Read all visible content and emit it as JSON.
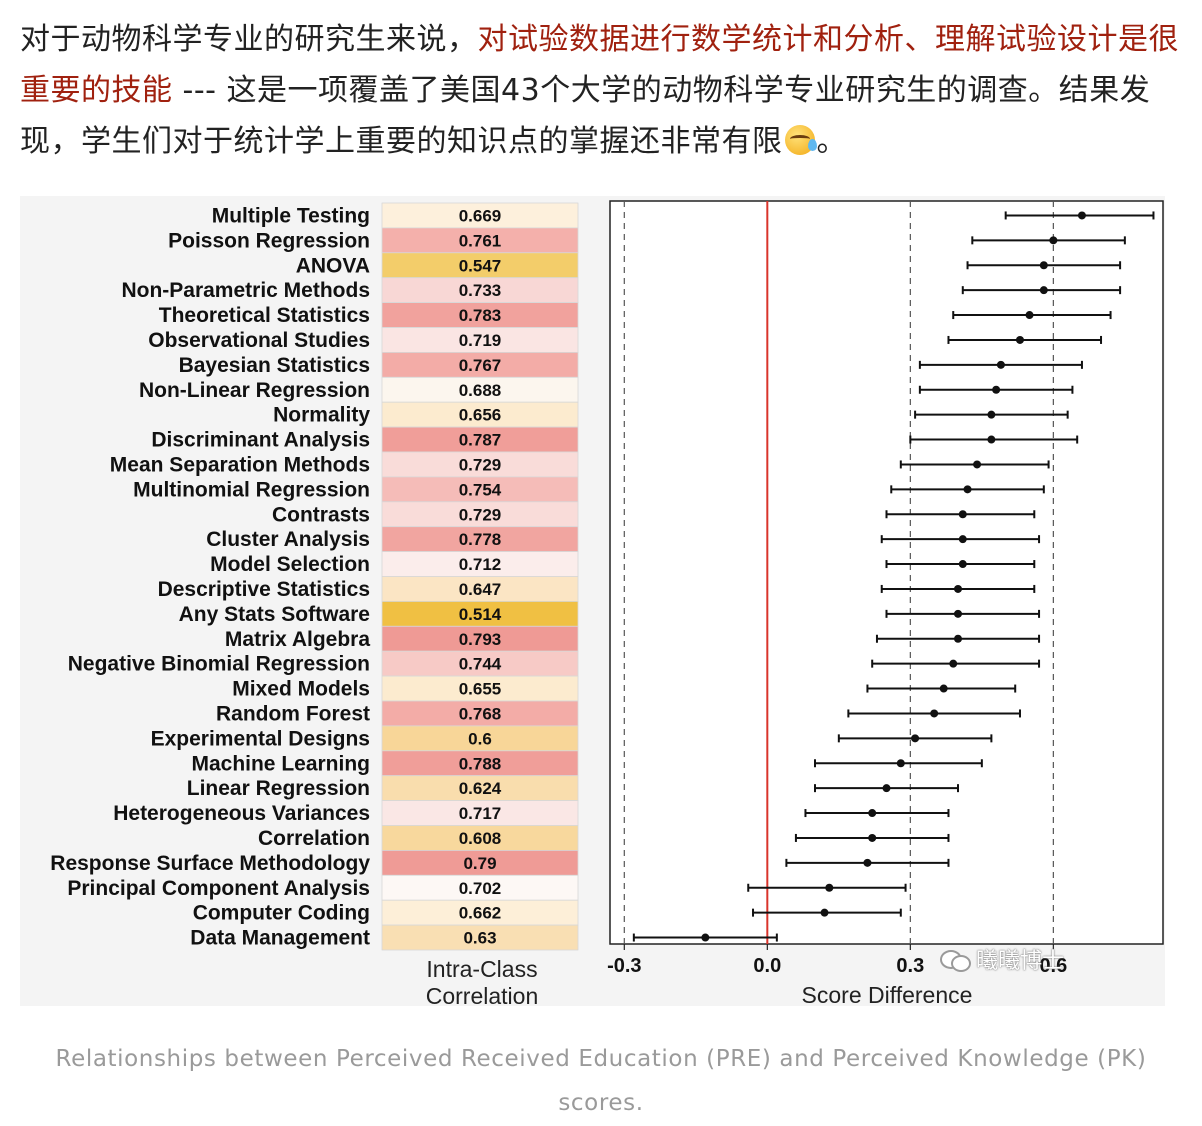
{
  "intro": {
    "part1": "对于动物科学专业的研究生来说，",
    "highlight": "对试验数据进行数学统计和分析、理解试验设计是很重要的技能",
    "part2": " --- 这是一项覆盖了美国43个大学的动物科学专业研究生的调查。结果发现，学生们对于统计学上重要的知识点的掌握还非常有限",
    "part3": "。"
  },
  "colors": {
    "highlight": "#a0210f",
    "zero_line": "#d9342b",
    "caption": "#9a9a9a"
  },
  "icons": {
    "emoji": "crying-laughing-emoji-icon",
    "watermark": "wechat-icon"
  },
  "watermark": "曦曦博士",
  "caption": "Relationships between Perceived Received Education (PRE) and Perceived Knowledge (PK) scores.",
  "chart_data": {
    "type": "table",
    "left_panel": {
      "xlabel_line1": "Intra-Class",
      "xlabel_line2": "Correlation",
      "rows": [
        {
          "label": "Multiple Testing",
          "icc": "0.669",
          "color": "#fdf0dc"
        },
        {
          "label": "Poisson Regression",
          "icc": "0.761",
          "color": "#f4b0ab"
        },
        {
          "label": "ANOVA",
          "icc": "0.547",
          "color": "#f3cd6a"
        },
        {
          "label": "Non-Parametric Methods",
          "icc": "0.733",
          "color": "#f8d7d5"
        },
        {
          "label": "Theoretical Statistics",
          "icc": "0.783",
          "color": "#f1a29d"
        },
        {
          "label": "Observational Studies",
          "icc": "0.719",
          "color": "#fae5e3"
        },
        {
          "label": "Bayesian Statistics",
          "icc": "0.767",
          "color": "#f3aca7"
        },
        {
          "label": "Non-Linear Regression",
          "icc": "0.688",
          "color": "#fcf6ee"
        },
        {
          "label": "Normality",
          "icc": "0.656",
          "color": "#fcebcf"
        },
        {
          "label": "Discriminant Analysis",
          "icc": "0.787",
          "color": "#f09e99"
        },
        {
          "label": "Mean Separation Methods",
          "icc": "0.729",
          "color": "#f9dcd9"
        },
        {
          "label": "Multinomial Regression",
          "icc": "0.754",
          "color": "#f5bcb8"
        },
        {
          "label": "Contrasts",
          "icc": "0.729",
          "color": "#f9dcd9"
        },
        {
          "label": "Cluster Analysis",
          "icc": "0.778",
          "color": "#f1a5a0"
        },
        {
          "label": "Model Selection",
          "icc": "0.712",
          "color": "#fbedeb"
        },
        {
          "label": "Descriptive Statistics",
          "icc": "0.647",
          "color": "#fbe5c4"
        },
        {
          "label": "Any Stats Software",
          "icc": "0.514",
          "color": "#f0c043"
        },
        {
          "label": "Matrix Algebra",
          "icc": "0.793",
          "color": "#ef9a95"
        },
        {
          "label": "Negative Binomial Regression",
          "icc": "0.744",
          "color": "#f7cac6"
        },
        {
          "label": "Mixed Models",
          "icc": "0.655",
          "color": "#fcebcf"
        },
        {
          "label": "Random Forest",
          "icc": "0.768",
          "color": "#f3aca7"
        },
        {
          "label": "Experimental Designs",
          "icc": "0.6",
          "color": "#f8d698"
        },
        {
          "label": "Machine Learning",
          "icc": "0.788",
          "color": "#f09e99"
        },
        {
          "label": "Linear Regression",
          "icc": "0.624",
          "color": "#f9ddad"
        },
        {
          "label": "Heterogeneous Variances",
          "icc": "0.717",
          "color": "#fae7e5"
        },
        {
          "label": "Correlation",
          "icc": "0.608",
          "color": "#f8d89d"
        },
        {
          "label": "Response Surface Methodology",
          "icc": "0.79",
          "color": "#ef9b96"
        },
        {
          "label": "Principal Component Analysis",
          "icc": "0.702",
          "color": "#fdf8f5"
        },
        {
          "label": "Computer Coding",
          "icc": "0.662",
          "color": "#fdefd8"
        },
        {
          "label": "Data Management",
          "icc": "0.63",
          "color": "#f9dfb3"
        }
      ]
    },
    "right_panel": {
      "type": "scatter",
      "xlabel": "Score Difference",
      "xlim": [
        -0.33,
        0.83
      ],
      "xticks": [
        "-0.3",
        "0.0",
        "0.3",
        "0.6"
      ],
      "reference_lines": {
        "solid": 0.0,
        "dashed": [
          -0.3,
          0.3,
          0.6
        ]
      },
      "points": [
        {
          "est": 0.66,
          "low": 0.5,
          "high": 0.81
        },
        {
          "est": 0.6,
          "low": 0.43,
          "high": 0.75
        },
        {
          "est": 0.58,
          "low": 0.42,
          "high": 0.74
        },
        {
          "est": 0.58,
          "low": 0.41,
          "high": 0.74
        },
        {
          "est": 0.55,
          "low": 0.39,
          "high": 0.72
        },
        {
          "est": 0.53,
          "low": 0.38,
          "high": 0.7
        },
        {
          "est": 0.49,
          "low": 0.32,
          "high": 0.66
        },
        {
          "est": 0.48,
          "low": 0.32,
          "high": 0.64
        },
        {
          "est": 0.47,
          "low": 0.31,
          "high": 0.63
        },
        {
          "est": 0.47,
          "low": 0.3,
          "high": 0.65
        },
        {
          "est": 0.44,
          "low": 0.28,
          "high": 0.59
        },
        {
          "est": 0.42,
          "low": 0.26,
          "high": 0.58
        },
        {
          "est": 0.41,
          "low": 0.25,
          "high": 0.56
        },
        {
          "est": 0.41,
          "low": 0.24,
          "high": 0.57
        },
        {
          "est": 0.41,
          "low": 0.25,
          "high": 0.56
        },
        {
          "est": 0.4,
          "low": 0.24,
          "high": 0.56
        },
        {
          "est": 0.4,
          "low": 0.25,
          "high": 0.57
        },
        {
          "est": 0.4,
          "low": 0.23,
          "high": 0.57
        },
        {
          "est": 0.39,
          "low": 0.22,
          "high": 0.57
        },
        {
          "est": 0.37,
          "low": 0.21,
          "high": 0.52
        },
        {
          "est": 0.35,
          "low": 0.17,
          "high": 0.53
        },
        {
          "est": 0.31,
          "low": 0.15,
          "high": 0.47
        },
        {
          "est": 0.28,
          "low": 0.1,
          "high": 0.45
        },
        {
          "est": 0.25,
          "low": 0.1,
          "high": 0.4
        },
        {
          "est": 0.22,
          "low": 0.08,
          "high": 0.38
        },
        {
          "est": 0.22,
          "low": 0.06,
          "high": 0.38
        },
        {
          "est": 0.21,
          "low": 0.04,
          "high": 0.38
        },
        {
          "est": 0.13,
          "low": -0.04,
          "high": 0.29
        },
        {
          "est": 0.12,
          "low": -0.03,
          "high": 0.28
        },
        {
          "est": -0.13,
          "low": -0.28,
          "high": 0.02
        }
      ]
    }
  }
}
